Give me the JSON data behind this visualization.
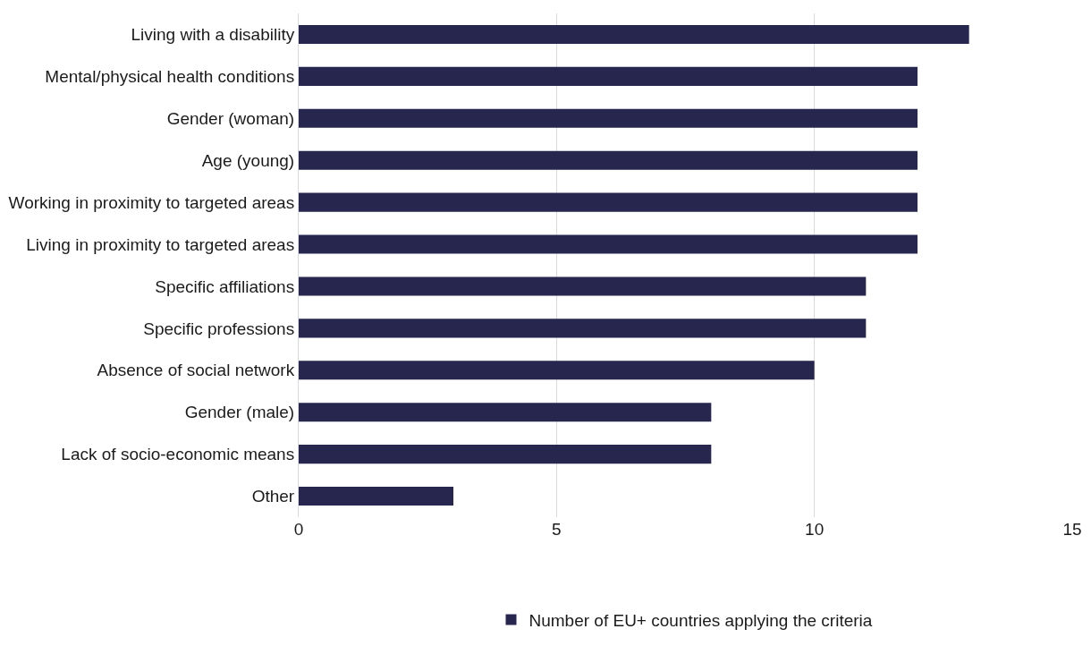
{
  "chart_data": {
    "type": "bar",
    "orientation": "horizontal",
    "categories": [
      "Living with a disability",
      "Mental/physical health conditions",
      "Gender (woman)",
      "Age (young)",
      "Working in proximity to targeted areas",
      "Living in proximity to targeted areas",
      "Specific affiliations",
      "Specific professions",
      "Absence of social network",
      "Gender (male)",
      "Lack of socio-economic means",
      "Other"
    ],
    "series": [
      {
        "name": "Number of EU+ countries applying the criteria",
        "color": "#26264f",
        "values": [
          13,
          12,
          12,
          12,
          12,
          12,
          11,
          11,
          10,
          8,
          8,
          3
        ]
      }
    ],
    "xlim": [
      0,
      15
    ],
    "xticks": [
      0,
      5,
      10,
      15
    ],
    "grid": "x",
    "legend": "bottom"
  }
}
